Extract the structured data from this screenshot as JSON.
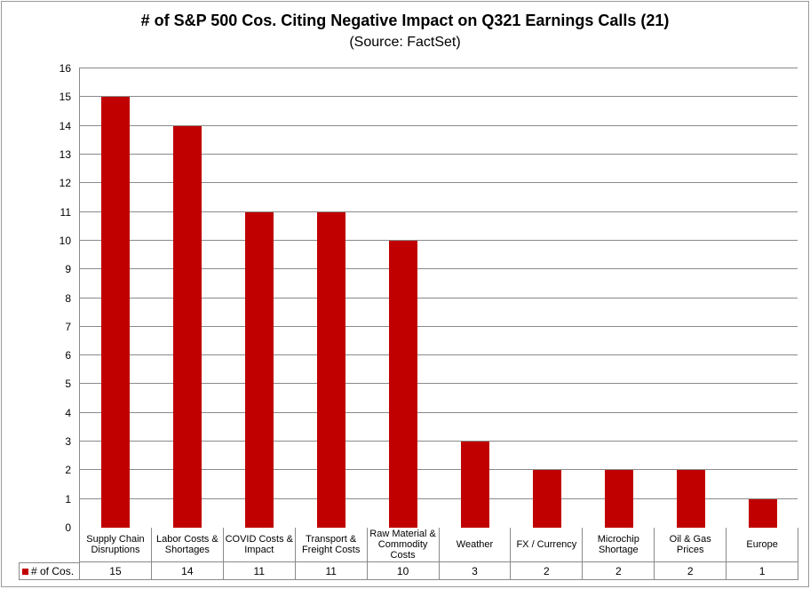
{
  "chart_data": {
    "type": "bar",
    "title": "# of S&P 500 Cos. Citing Negative Impact on Q321 Earnings Calls (21)",
    "subtitle": "(Source: FactSet)",
    "categories": [
      "Supply Chain Disruptions",
      "Labor Costs & Shortages",
      "COVID Costs & Impact",
      "Transport & Freight Costs",
      "Raw Material & Commodity Costs",
      "Weather",
      "FX / Currency",
      "Microchip Shortage",
      "Oil & Gas Prices",
      "Europe"
    ],
    "series": [
      {
        "name": "# of Cos.",
        "values": [
          15,
          14,
          11,
          11,
          10,
          3,
          2,
          2,
          2,
          1
        ]
      }
    ],
    "ylim": [
      0,
      16
    ],
    "ytick_interval": 1,
    "grid": true,
    "legend_position": "bottom-left",
    "data_table": true,
    "bar_color": "#C00000",
    "gridline_color": "#8A8A8A",
    "text_color": "#000000"
  }
}
